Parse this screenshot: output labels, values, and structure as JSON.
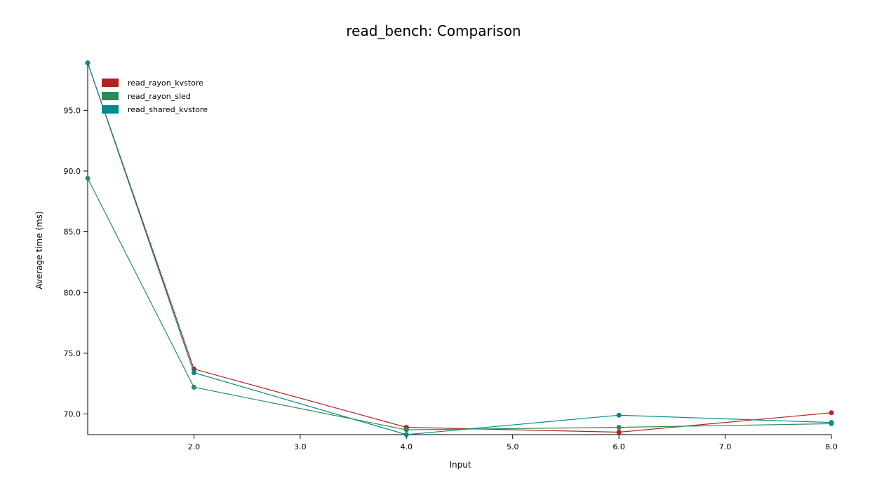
{
  "chart_data": {
    "type": "line",
    "title": "read_bench: Comparison",
    "xlabel": "Input",
    "ylabel": "Average time (ms)",
    "xlim": [
      1.0,
      8.0
    ],
    "ylim": [
      68.3,
      99.0
    ],
    "xticks": [
      2.0,
      3.0,
      4.0,
      5.0,
      6.0,
      7.0,
      8.0
    ],
    "xtick_labels": [
      "2.0",
      "3.0",
      "4.0",
      "5.0",
      "6.0",
      "7.0",
      "8.0"
    ],
    "yticks": [
      70.0,
      75.0,
      80.0,
      85.0,
      90.0,
      95.0
    ],
    "ytick_labels": [
      "70.0",
      "75.0",
      "80.0",
      "85.0",
      "90.0",
      "95.0"
    ],
    "legend_position": "top-left",
    "series": [
      {
        "name": "read_rayon_kvstore",
        "color": "#b22222",
        "x": [
          1.0,
          2.0,
          4.0,
          6.0,
          8.0
        ],
        "values": [
          98.9,
          73.7,
          68.9,
          68.5,
          70.1
        ]
      },
      {
        "name": "read_rayon_sled",
        "color": "#2e8b57",
        "x": [
          1.0,
          2.0,
          4.0,
          6.0,
          8.0
        ],
        "values": [
          89.4,
          72.2,
          68.7,
          68.9,
          69.2
        ]
      },
      {
        "name": "read_shared_kvstore",
        "color": "#008b8b",
        "x": [
          1.0,
          2.0,
          4.0,
          6.0,
          8.0
        ],
        "values": [
          98.9,
          73.4,
          68.3,
          69.9,
          69.3
        ]
      }
    ]
  }
}
